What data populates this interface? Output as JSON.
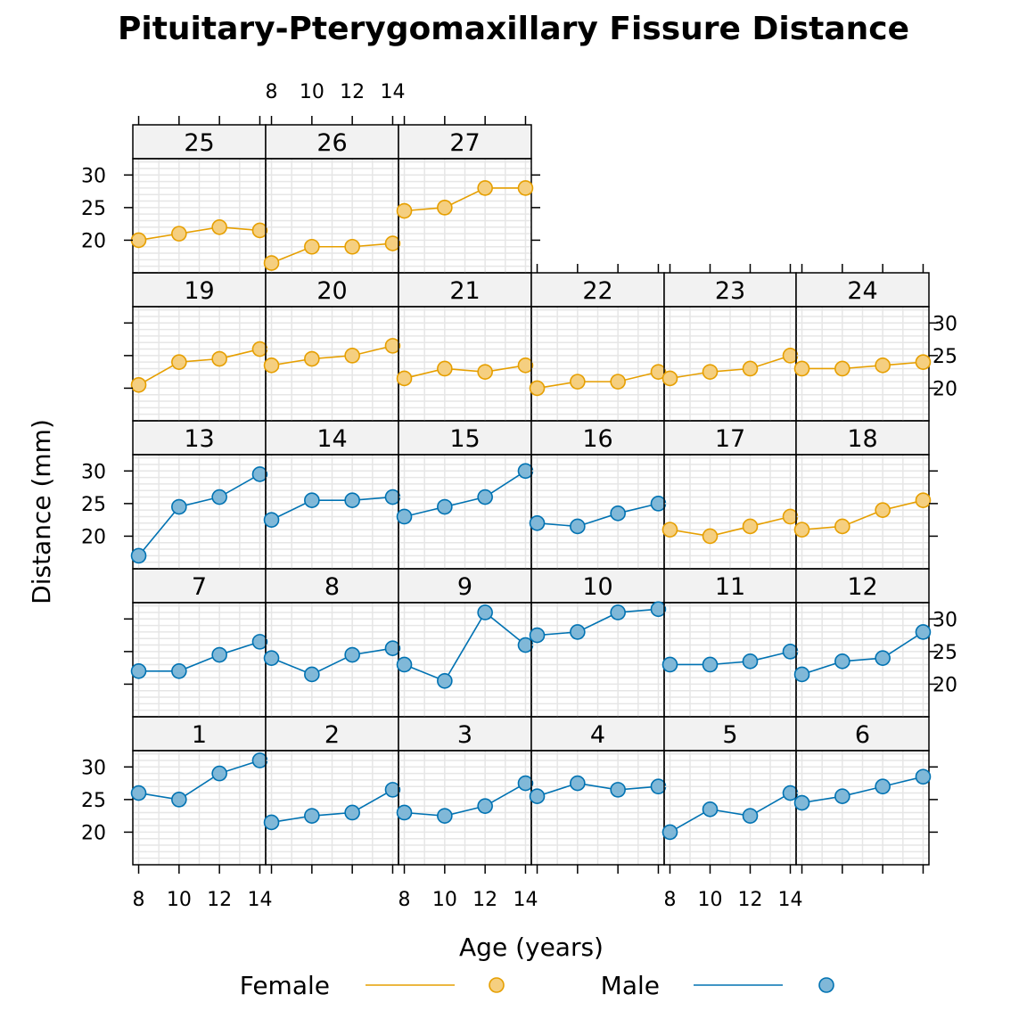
{
  "chart_data": {
    "type": "line",
    "title": "Pituitary-Pterygomaxillary Fissure Distance",
    "xlabel": "Age (years)",
    "ylabel": "Distance (mm)",
    "x": [
      8,
      10,
      12,
      14
    ],
    "x_ticks": [
      "8",
      "10",
      "12",
      "14"
    ],
    "y_ticks": [
      "20",
      "25",
      "30"
    ],
    "ylim": [
      15,
      32.5
    ],
    "grid": true,
    "legend": {
      "position": "bottom",
      "entries": [
        {
          "label": "Female",
          "color": "#E69F00",
          "fill": "#F5CF80"
        },
        {
          "label": "Male",
          "color": "#0072B2",
          "fill": "#80B8D8"
        }
      ]
    },
    "panels": [
      {
        "subject": "1",
        "sex": "Male",
        "values": [
          26,
          25,
          29,
          31
        ]
      },
      {
        "subject": "2",
        "sex": "Male",
        "values": [
          21.5,
          22.5,
          23,
          26.5
        ]
      },
      {
        "subject": "3",
        "sex": "Male",
        "values": [
          23,
          22.5,
          24,
          27.5
        ]
      },
      {
        "subject": "4",
        "sex": "Male",
        "values": [
          25.5,
          27.5,
          26.5,
          27
        ]
      },
      {
        "subject": "5",
        "sex": "Male",
        "values": [
          20,
          23.5,
          22.5,
          26
        ]
      },
      {
        "subject": "6",
        "sex": "Male",
        "values": [
          24.5,
          25.5,
          27,
          28.5
        ]
      },
      {
        "subject": "7",
        "sex": "Male",
        "values": [
          22,
          22,
          24.5,
          26.5
        ]
      },
      {
        "subject": "8",
        "sex": "Male",
        "values": [
          24,
          21.5,
          24.5,
          25.5
        ]
      },
      {
        "subject": "9",
        "sex": "Male",
        "values": [
          23,
          20.5,
          31,
          26
        ]
      },
      {
        "subject": "10",
        "sex": "Male",
        "values": [
          27.5,
          28,
          31,
          31.5
        ]
      },
      {
        "subject": "11",
        "sex": "Male",
        "values": [
          23,
          23,
          23.5,
          25
        ]
      },
      {
        "subject": "12",
        "sex": "Male",
        "values": [
          21.5,
          23.5,
          24,
          28
        ]
      },
      {
        "subject": "13",
        "sex": "Male",
        "values": [
          17,
          24.5,
          26,
          29.5
        ]
      },
      {
        "subject": "14",
        "sex": "Male",
        "values": [
          22.5,
          25.5,
          25.5,
          26
        ]
      },
      {
        "subject": "15",
        "sex": "Male",
        "values": [
          23,
          24.5,
          26,
          30
        ]
      },
      {
        "subject": "16",
        "sex": "Male",
        "values": [
          22,
          21.5,
          23.5,
          25
        ]
      },
      {
        "subject": "17",
        "sex": "Female",
        "values": [
          21,
          20,
          21.5,
          23
        ]
      },
      {
        "subject": "18",
        "sex": "Female",
        "values": [
          21,
          21.5,
          24,
          25.5
        ]
      },
      {
        "subject": "19",
        "sex": "Female",
        "values": [
          20.5,
          24,
          24.5,
          26
        ]
      },
      {
        "subject": "20",
        "sex": "Female",
        "values": [
          23.5,
          24.5,
          25,
          26.5
        ]
      },
      {
        "subject": "21",
        "sex": "Female",
        "values": [
          21.5,
          23,
          22.5,
          23.5
        ]
      },
      {
        "subject": "22",
        "sex": "Female",
        "values": [
          20,
          21,
          21,
          22.5
        ]
      },
      {
        "subject": "23",
        "sex": "Female",
        "values": [
          21.5,
          22.5,
          23,
          25
        ]
      },
      {
        "subject": "24",
        "sex": "Female",
        "values": [
          23,
          23,
          23.5,
          24
        ]
      },
      {
        "subject": "25",
        "sex": "Female",
        "values": [
          20,
          21,
          22,
          21.5
        ]
      },
      {
        "subject": "26",
        "sex": "Female",
        "values": [
          16.5,
          19,
          19,
          19.5
        ]
      },
      {
        "subject": "27",
        "sex": "Female",
        "values": [
          24.5,
          25,
          28,
          28
        ]
      }
    ]
  }
}
